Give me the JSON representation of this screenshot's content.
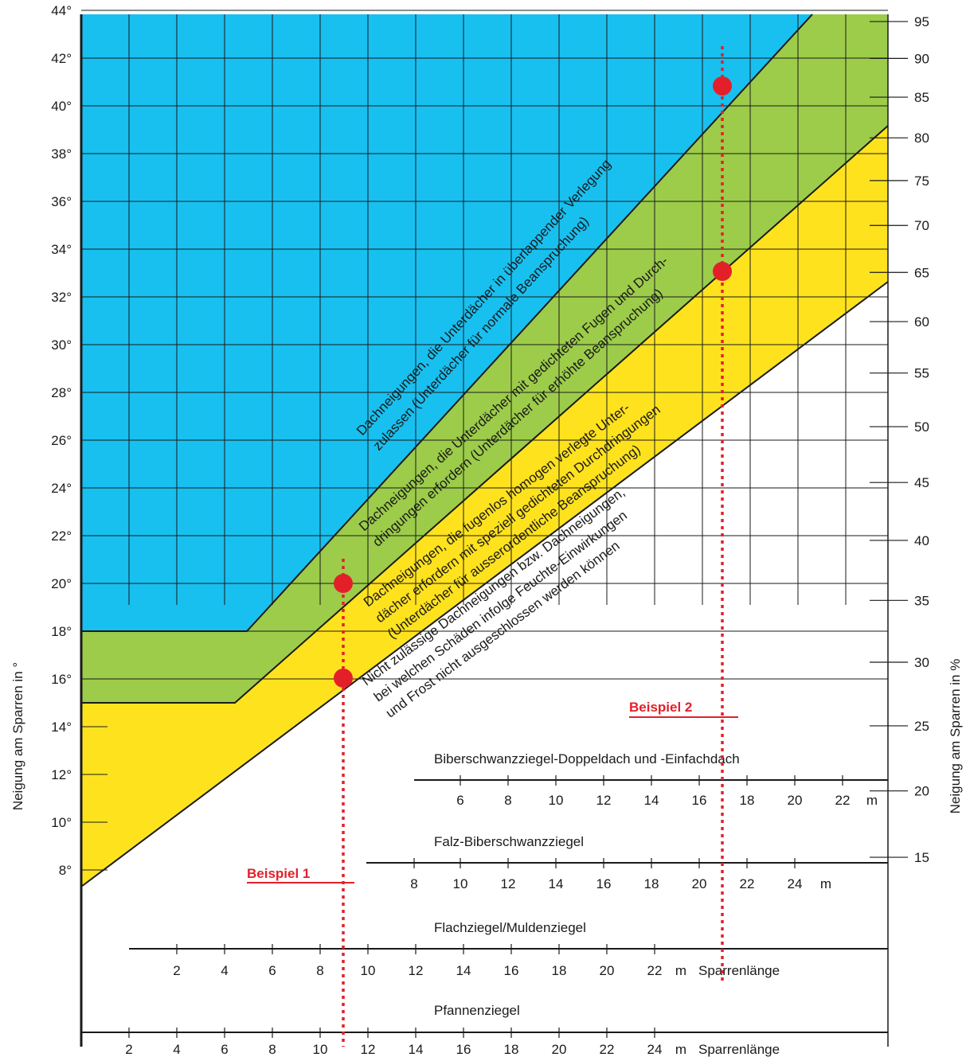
{
  "chart_data": {
    "type": "area",
    "y_left": {
      "label": "Neigung am Sparren in °",
      "range": [
        7,
        44
      ],
      "ticks": [
        "8°",
        "10°",
        "12°",
        "14°",
        "16°",
        "18°",
        "20°",
        "22°",
        "24°",
        "26°",
        "28°",
        "30°",
        "32°",
        "34°",
        "36°",
        "38°",
        "40°",
        "42°",
        "44°"
      ],
      "tick_values": [
        8,
        10,
        12,
        14,
        16,
        18,
        20,
        22,
        24,
        26,
        28,
        30,
        32,
        34,
        36,
        38,
        40,
        42,
        44
      ]
    },
    "y_right": {
      "label": "Neigung am Sparren in %",
      "ticks": [
        "15",
        "20",
        "25",
        "30",
        "35",
        "40",
        "45",
        "50",
        "55",
        "60",
        "65",
        "70",
        "75",
        "80",
        "85",
        "90",
        "95"
      ],
      "tick_values": [
        15,
        20,
        25,
        30,
        35,
        40,
        45,
        50,
        55,
        60,
        65,
        70,
        75,
        80,
        85,
        90,
        95
      ]
    },
    "x_scales": [
      {
        "name": "Biberschwanzziegel-Doppeldach und      -Einfachdach",
        "ticks": [
          "6",
          "8",
          "10",
          "12",
          "14",
          "16",
          "18",
          "20",
          "22"
        ],
        "unit": "m",
        "axis_label": ""
      },
      {
        "name": "Falz-Biberschwanzziegel",
        "ticks": [
          "8",
          "10",
          "12",
          "14",
          "16",
          "18",
          "20",
          "22",
          "24"
        ],
        "unit": "m",
        "axis_label": ""
      },
      {
        "name": "Flachziegel/Muldenziegel",
        "ticks": [
          "2",
          "4",
          "6",
          "8",
          "10",
          "12",
          "14",
          "16",
          "18",
          "20",
          "22"
        ],
        "unit": "m",
        "axis_label": "Sparrenlänge"
      },
      {
        "name": "Pfannenziegel",
        "ticks": [
          "2",
          "4",
          "6",
          "8",
          "10",
          "12",
          "14",
          "16",
          "18",
          "20",
          "22",
          "24"
        ],
        "unit": "m",
        "axis_label": "Sparrenlänge"
      }
    ],
    "bands": [
      {
        "name": "Dachneigungen, die Unterdächer in überlappender Verlegung zulassen (Unterdächer für normale Beanspruchung)",
        "lines": [
          "Dachneigungen, die Unterdächer in überlappender Verlegung",
          "zulassen (Unterdächer für normale Beanspruchung)"
        ],
        "color": "#18c0f0"
      },
      {
        "name": "Dachneigungen, die Unterdächer mit gedichteten Fugen und Durchdringungen erfordern (Unterdächer für erhöhte Beanspruchung)",
        "lines": [
          "Dachneigungen, die Unterdächer mit gedichteten Fugen und Durch-",
          "dringungen erfordern (Unterdächer für erhöhte Beanspruchung)"
        ],
        "color": "#9ccc4a"
      },
      {
        "name": "Dachneigungen, die fugenlos homogen verlegte Unterdächer erfordern mit speziell gedichteten Durchdringungen (Unterdächer für ausserordentliche Beanspruchung)",
        "lines": [
          "Dachneigungen, die fugenlos homogen verlegte Unter-",
          "dächer erfordern mit speziell gedichteten Durchdringungen",
          "(Unterdächer für ausserordentliche Beanspruchung)"
        ],
        "color": "#ffe21e"
      },
      {
        "name": "Nicht zulässige Dachneigungen bzw. Dachneigungen, bei welchen Schäden infolge Feuchte-Einwirkungen und Frost nicht ausgeschlossen werden können",
        "lines": [
          "Nicht zulässige Dachneigungen bzw. Dachneigungen,",
          "bei welchen Schäden infolge Feuchte-Einwirkungen",
          "und Frost nicht ausgeschlossen werden können"
        ],
        "color": "#ffffff"
      }
    ],
    "examples": [
      {
        "label": "Beispiel 1",
        "points_deg": [
          20,
          16
        ],
        "color": "#e3202a"
      },
      {
        "label": "Beispiel 2",
        "points_deg": [
          41,
          33.2
        ],
        "color": "#e3202a"
      }
    ],
    "grid": true
  }
}
